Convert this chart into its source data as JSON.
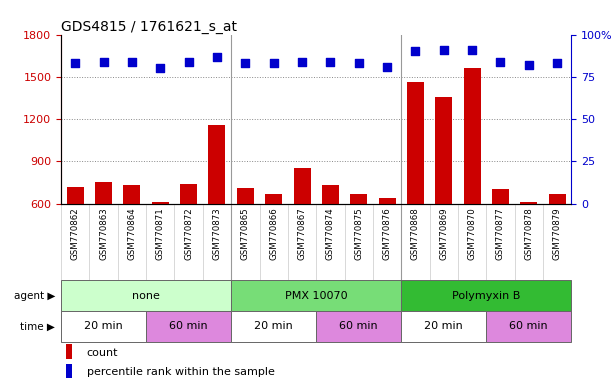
{
  "title": "GDS4815 / 1761621_s_at",
  "samples": [
    "GSM770862",
    "GSM770863",
    "GSM770864",
    "GSM770871",
    "GSM770872",
    "GSM770873",
    "GSM770865",
    "GSM770866",
    "GSM770867",
    "GSM770874",
    "GSM770875",
    "GSM770876",
    "GSM770868",
    "GSM770869",
    "GSM770870",
    "GSM770877",
    "GSM770878",
    "GSM770879"
  ],
  "counts": [
    720,
    750,
    730,
    610,
    740,
    1155,
    710,
    670,
    850,
    730,
    670,
    640,
    1460,
    1360,
    1560,
    700,
    610,
    665
  ],
  "percentile_ranks": [
    83,
    84,
    84,
    80,
    84,
    87,
    83,
    83,
    84,
    84,
    83,
    81,
    90,
    91,
    91,
    84,
    82,
    83
  ],
  "ylim_left": [
    600,
    1800
  ],
  "ylim_right": [
    0,
    100
  ],
  "yticks_left": [
    600,
    900,
    1200,
    1500,
    1800
  ],
  "yticks_right": [
    0,
    25,
    50,
    75,
    100
  ],
  "bar_color": "#cc0000",
  "dot_color": "#0000cc",
  "bar_bottom": 600,
  "agent_groups": [
    {
      "label": "none",
      "start": 0,
      "end": 6,
      "color": "#ccffcc"
    },
    {
      "label": "PMX 10070",
      "start": 6,
      "end": 12,
      "color": "#77dd77"
    },
    {
      "label": "Polymyxin B",
      "start": 12,
      "end": 18,
      "color": "#33bb33"
    }
  ],
  "time_groups": [
    {
      "label": "20 min",
      "start": 0,
      "end": 3,
      "color": "#ffffff"
    },
    {
      "label": "60 min",
      "start": 3,
      "end": 6,
      "color": "#dd88dd"
    },
    {
      "label": "20 min",
      "start": 6,
      "end": 9,
      "color": "#ffffff"
    },
    {
      "label": "60 min",
      "start": 9,
      "end": 12,
      "color": "#dd88dd"
    },
    {
      "label": "20 min",
      "start": 12,
      "end": 15,
      "color": "#ffffff"
    },
    {
      "label": "60 min",
      "start": 15,
      "end": 18,
      "color": "#dd88dd"
    }
  ],
  "background_color": "#ffffff",
  "plot_bg_color": "#ffffff",
  "sample_row_color": "#cccccc",
  "legend_count_color": "#cc0000",
  "legend_pct_color": "#0000cc",
  "separator_color": "#999999"
}
